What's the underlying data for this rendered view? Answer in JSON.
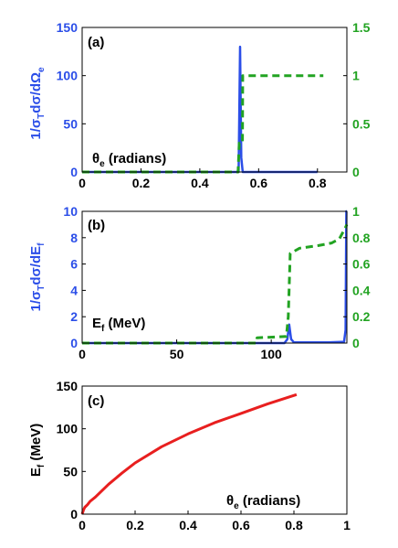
{
  "chart_data": [
    {
      "type": "line",
      "panel_label": "(a)",
      "annotation": "θe (radians)",
      "xlim": [
        0,
        0.9
      ],
      "x_ticks": [
        "0",
        "0.2",
        "0.4",
        "0.6",
        "0.8"
      ],
      "ylim": [
        0,
        150
      ],
      "y_ticks": [
        "0",
        "50",
        "100",
        "150"
      ],
      "ylabel": "1/σTdσ/dΩe",
      "y2lim": [
        0,
        1.5
      ],
      "y2_ticks": [
        "0",
        "0.5",
        "1",
        "1.5"
      ],
      "grid": false,
      "series": [
        {
          "color": "#2b4ee8",
          "style": "solid",
          "axis": "left",
          "x": [
            0,
            0.532,
            0.537,
            0.541,
            0.546,
            0.551,
            0.8
          ],
          "values": [
            0,
            0,
            130,
            15,
            0,
            0,
            0
          ]
        },
        {
          "color": "#22a322",
          "style": "dashed",
          "axis": "right",
          "x": [
            0,
            0.53,
            0.534,
            0.545,
            0.546,
            0.82
          ],
          "values": [
            0,
            0,
            0.3,
            0.3,
            1.0,
            1.0
          ]
        }
      ]
    },
    {
      "type": "line",
      "panel_label": "(b)",
      "annotation": "Ef (MeV)",
      "xlim": [
        0,
        140
      ],
      "x_ticks": [
        "0",
        "50",
        "100"
      ],
      "ylim": [
        0,
        10
      ],
      "y_ticks": [
        "0",
        "2",
        "4",
        "6",
        "8",
        "10"
      ],
      "ylabel": "1/σTdσ/dEf",
      "y2lim": [
        0,
        1
      ],
      "y2_ticks": [
        "0",
        "0.2",
        "0.4",
        "0.6",
        "0.8",
        "1"
      ],
      "grid": false,
      "series": [
        {
          "color": "#2b4ee8",
          "style": "solid",
          "axis": "left",
          "x": [
            0,
            107,
            108.5,
            109.5,
            110.5,
            112,
            130,
            138.5,
            139.3,
            139.7,
            140
          ],
          "values": [
            0,
            0,
            0.3,
            1.4,
            0.3,
            0.05,
            0.05,
            0.1,
            1.0,
            10,
            10
          ]
        },
        {
          "color": "#22a322",
          "style": "dashed",
          "axis": "right",
          "x": [
            0,
            92,
            92.5,
            108,
            109,
            110,
            115,
            125,
            132,
            136,
            139,
            140
          ],
          "values": [
            0,
            0,
            0.04,
            0.05,
            0.2,
            0.68,
            0.72,
            0.74,
            0.76,
            0.79,
            0.87,
            0.9
          ]
        }
      ]
    },
    {
      "type": "line",
      "panel_label": "(c)",
      "annotation": "θe (radians)",
      "xlim": [
        0,
        1
      ],
      "x_ticks": [
        "0",
        "0.2",
        "0.4",
        "0.6",
        "0.8",
        "1"
      ],
      "ylim": [
        0,
        150
      ],
      "y_ticks": [
        "0",
        "50",
        "100",
        "150"
      ],
      "ylabel": "Ef (MeV)",
      "grid": false,
      "series": [
        {
          "color": "#e81f1f",
          "style": "solid",
          "axis": "left",
          "x": [
            0,
            0.005,
            0.01,
            0.02,
            0.03,
            0.05,
            0.07,
            0.1,
            0.15,
            0.2,
            0.3,
            0.4,
            0.5,
            0.6,
            0.7,
            0.81
          ],
          "values": [
            0,
            5,
            8,
            11,
            15,
            20,
            26,
            35,
            48,
            60,
            79,
            94,
            107,
            118,
            129,
            140
          ]
        }
      ]
    }
  ]
}
